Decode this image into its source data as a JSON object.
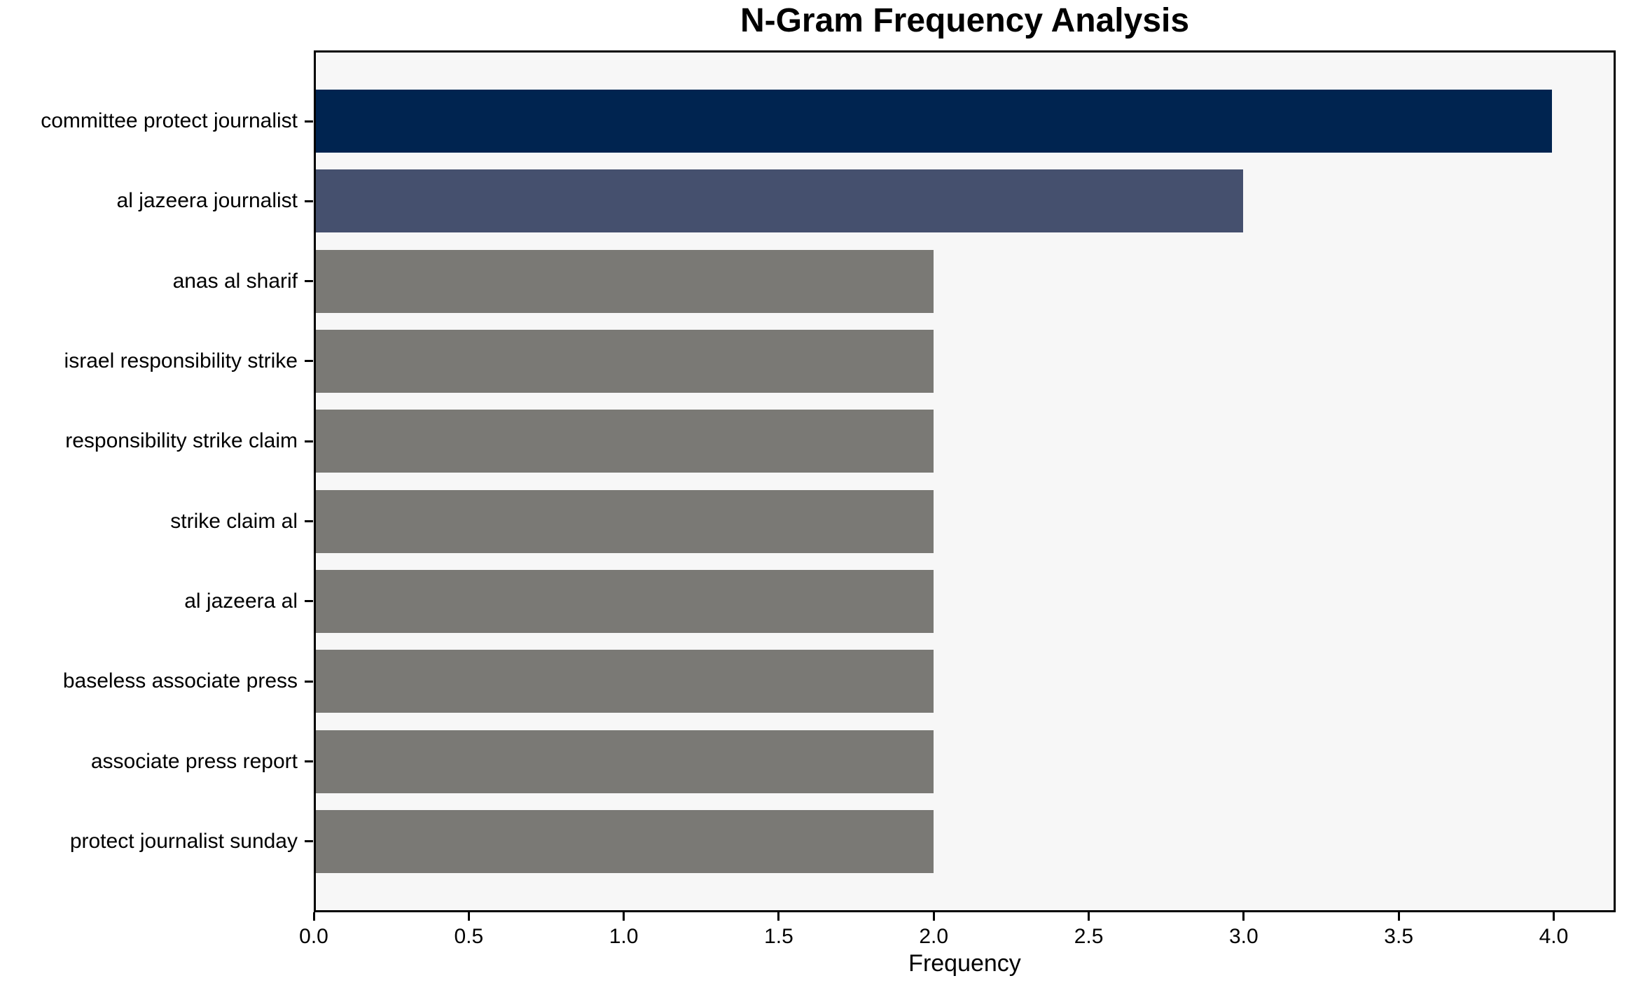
{
  "chart_data": {
    "type": "bar",
    "orientation": "horizontal",
    "title": "N-Gram Frequency Analysis",
    "xlabel": "Frequency",
    "ylabel": "",
    "categories": [
      "committee protect journalist",
      "al jazeera journalist",
      "anas al sharif",
      "israel responsibility strike",
      "responsibility strike claim",
      "strike claim al",
      "al jazeera al",
      "baseless associate press",
      "associate press report",
      "protect journalist sunday"
    ],
    "values": [
      4,
      3,
      2,
      2,
      2,
      2,
      2,
      2,
      2,
      2
    ],
    "bar_colors": [
      "#002450",
      "#45506e",
      "#7a7975",
      "#7a7975",
      "#7a7975",
      "#7a7975",
      "#7a7975",
      "#7a7975",
      "#7a7975",
      "#7a7975"
    ],
    "xlim": [
      0,
      4.2
    ],
    "xtick_values": [
      0.0,
      0.5,
      1.0,
      1.5,
      2.0,
      2.5,
      3.0,
      3.5,
      4.0
    ],
    "xtick_labels": [
      "0.0",
      "0.5",
      "1.0",
      "1.5",
      "2.0",
      "2.5",
      "3.0",
      "3.5",
      "4.0"
    ],
    "legend": "none",
    "grid": false,
    "plot_background": "#f7f7f7",
    "figure_background": "#ffffff",
    "spine_color": "#000000",
    "text_color": "#000000"
  }
}
